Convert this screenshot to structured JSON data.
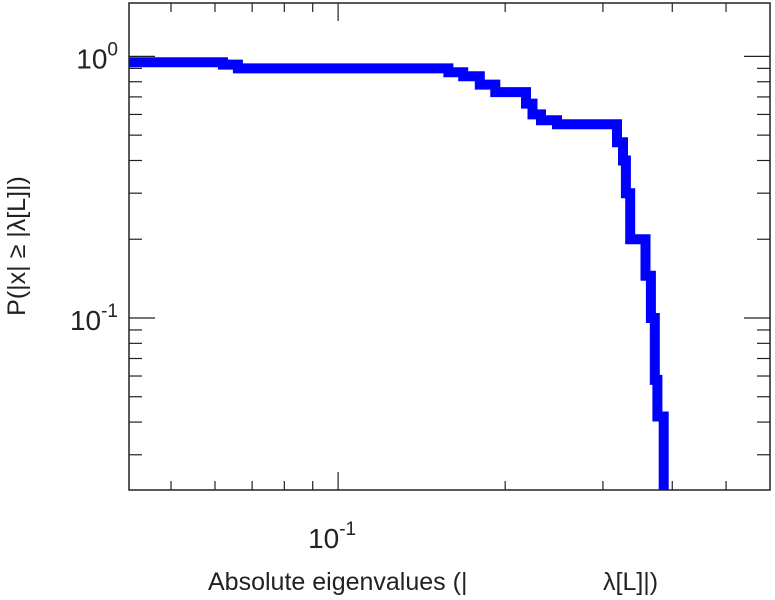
{
  "chart_data": {
    "type": "line",
    "step": true,
    "xscale": "log",
    "yscale": "log",
    "xlim": [
      0.042,
      0.6
    ],
    "ylim": [
      0.022,
      1.6
    ],
    "grid": false,
    "xlabel_left": "Absolute eigenvalues (|",
    "xlabel_right": "λ[L]|)",
    "ylabel": "P(|x| ≥ |λ[L]|)",
    "x_tick_labels": [
      {
        "value": 0.1,
        "base": "10",
        "exp": "-1"
      }
    ],
    "y_tick_labels": [
      {
        "value": 1.0,
        "base": "10",
        "exp": "0"
      },
      {
        "value": 0.1,
        "base": "10",
        "exp": "-1"
      }
    ],
    "series": [
      {
        "color": "#0000ff",
        "points": [
          [
            0.042,
            0.95
          ],
          [
            0.062,
            0.95
          ],
          [
            0.062,
            0.93
          ],
          [
            0.066,
            0.93
          ],
          [
            0.066,
            0.9
          ],
          [
            0.158,
            0.9
          ],
          [
            0.158,
            0.87
          ],
          [
            0.168,
            0.87
          ],
          [
            0.168,
            0.84
          ],
          [
            0.18,
            0.84
          ],
          [
            0.18,
            0.78
          ],
          [
            0.192,
            0.78
          ],
          [
            0.192,
            0.73
          ],
          [
            0.218,
            0.73
          ],
          [
            0.218,
            0.66
          ],
          [
            0.224,
            0.66
          ],
          [
            0.224,
            0.6
          ],
          [
            0.232,
            0.6
          ],
          [
            0.232,
            0.57
          ],
          [
            0.248,
            0.57
          ],
          [
            0.248,
            0.55
          ],
          [
            0.318,
            0.55
          ],
          [
            0.318,
            0.47
          ],
          [
            0.326,
            0.47
          ],
          [
            0.326,
            0.4
          ],
          [
            0.33,
            0.4
          ],
          [
            0.33,
            0.3
          ],
          [
            0.336,
            0.3
          ],
          [
            0.336,
            0.2
          ],
          [
            0.358,
            0.2
          ],
          [
            0.358,
            0.145
          ],
          [
            0.366,
            0.145
          ],
          [
            0.366,
            0.1
          ],
          [
            0.372,
            0.1
          ],
          [
            0.372,
            0.058
          ],
          [
            0.376,
            0.058
          ],
          [
            0.376,
            0.042
          ],
          [
            0.386,
            0.042
          ],
          [
            0.386,
            0.022
          ]
        ]
      }
    ]
  }
}
